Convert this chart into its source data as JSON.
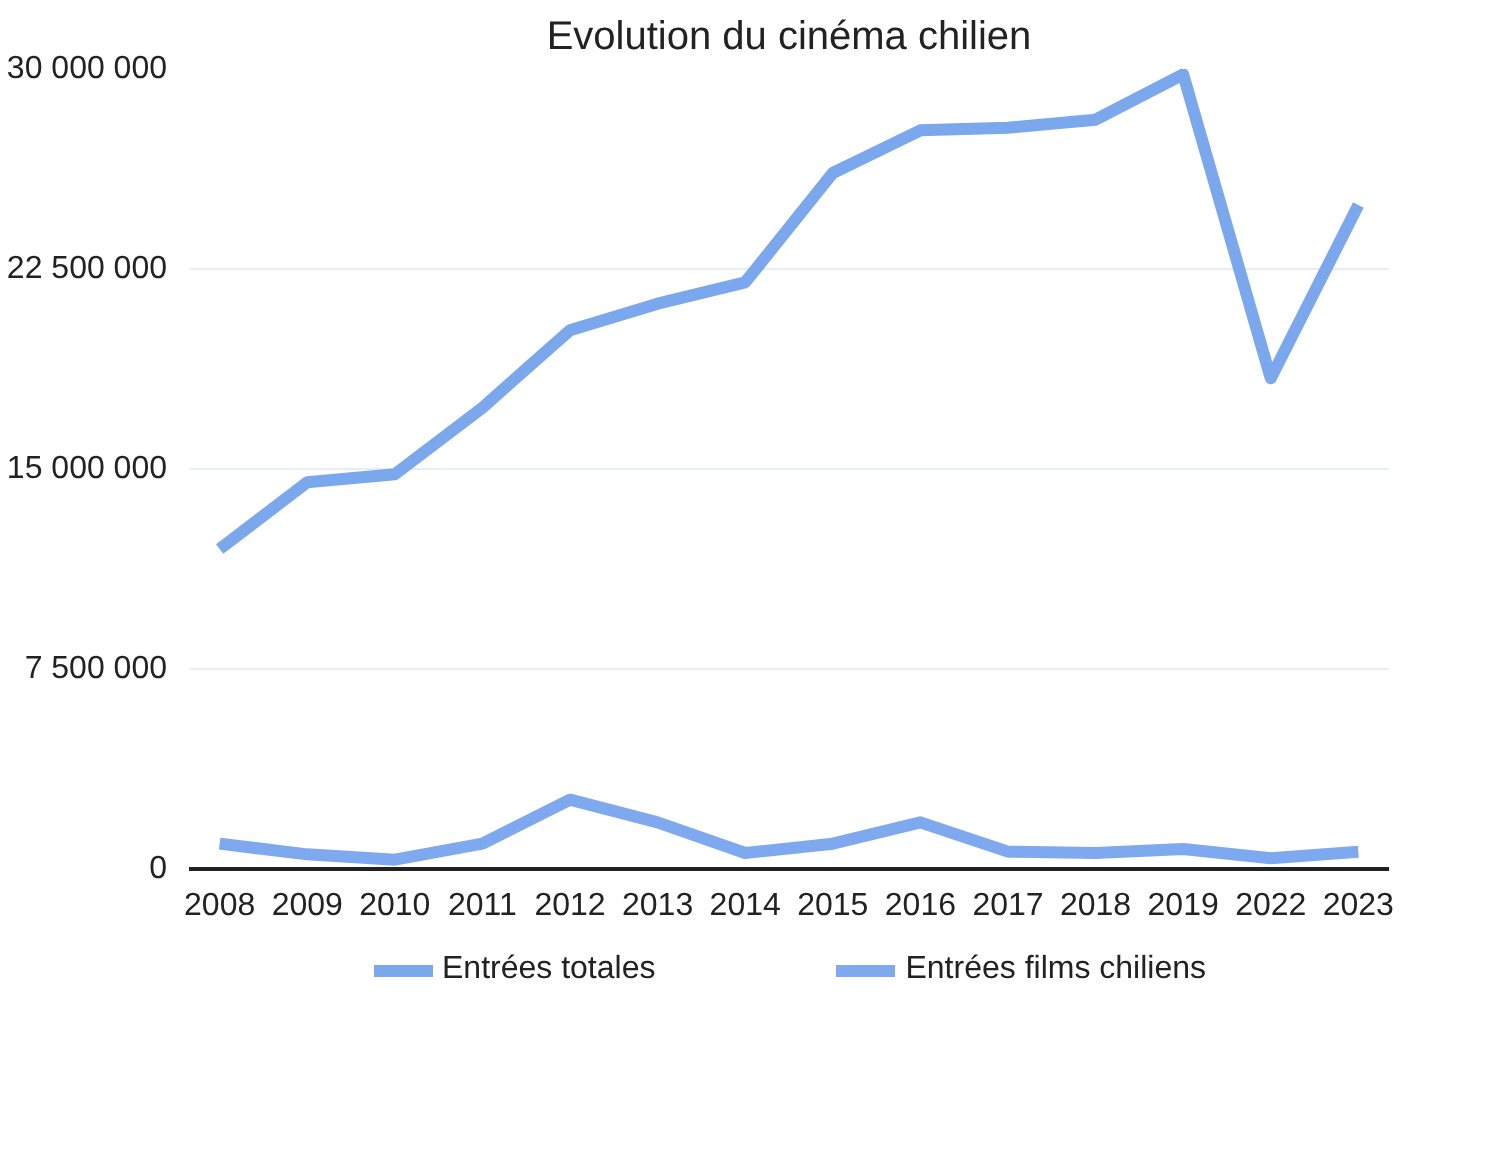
{
  "chart_data": {
    "type": "line",
    "title": "Evolution du cinéma chilien",
    "categories": [
      "2008",
      "2009",
      "2010",
      "2011",
      "2012",
      "2013",
      "2014",
      "2015",
      "2016",
      "2017",
      "2018",
      "2019",
      "2022",
      "2023"
    ],
    "series": [
      {
        "name": "Entrées totales",
        "color": "#7ba7ec",
        "values": [
          12000000,
          14500000,
          14800000,
          17300000,
          20200000,
          21200000,
          22000000,
          26100000,
          27700000,
          27800000,
          28100000,
          29800000,
          18400000,
          24900000
        ]
      },
      {
        "name": "Entrées films chiliens",
        "color": "#7ea9ee",
        "values": [
          950000,
          550000,
          350000,
          950000,
          2600000,
          1750000,
          600000,
          950000,
          1750000,
          650000,
          600000,
          750000,
          400000,
          650000
        ]
      }
    ],
    "ylim": [
      0,
      30000000
    ],
    "yticks": [
      {
        "value": 0,
        "label": "0"
      },
      {
        "value": 7500000,
        "label": "7 500 000"
      },
      {
        "value": 15000000,
        "label": "15 000 000"
      },
      {
        "value": 22500000,
        "label": "22 500 000"
      },
      {
        "value": 30000000,
        "label": "30 000 000"
      }
    ],
    "grid": "y",
    "legend": "bottom",
    "marker": "none",
    "line_style": "solid"
  }
}
